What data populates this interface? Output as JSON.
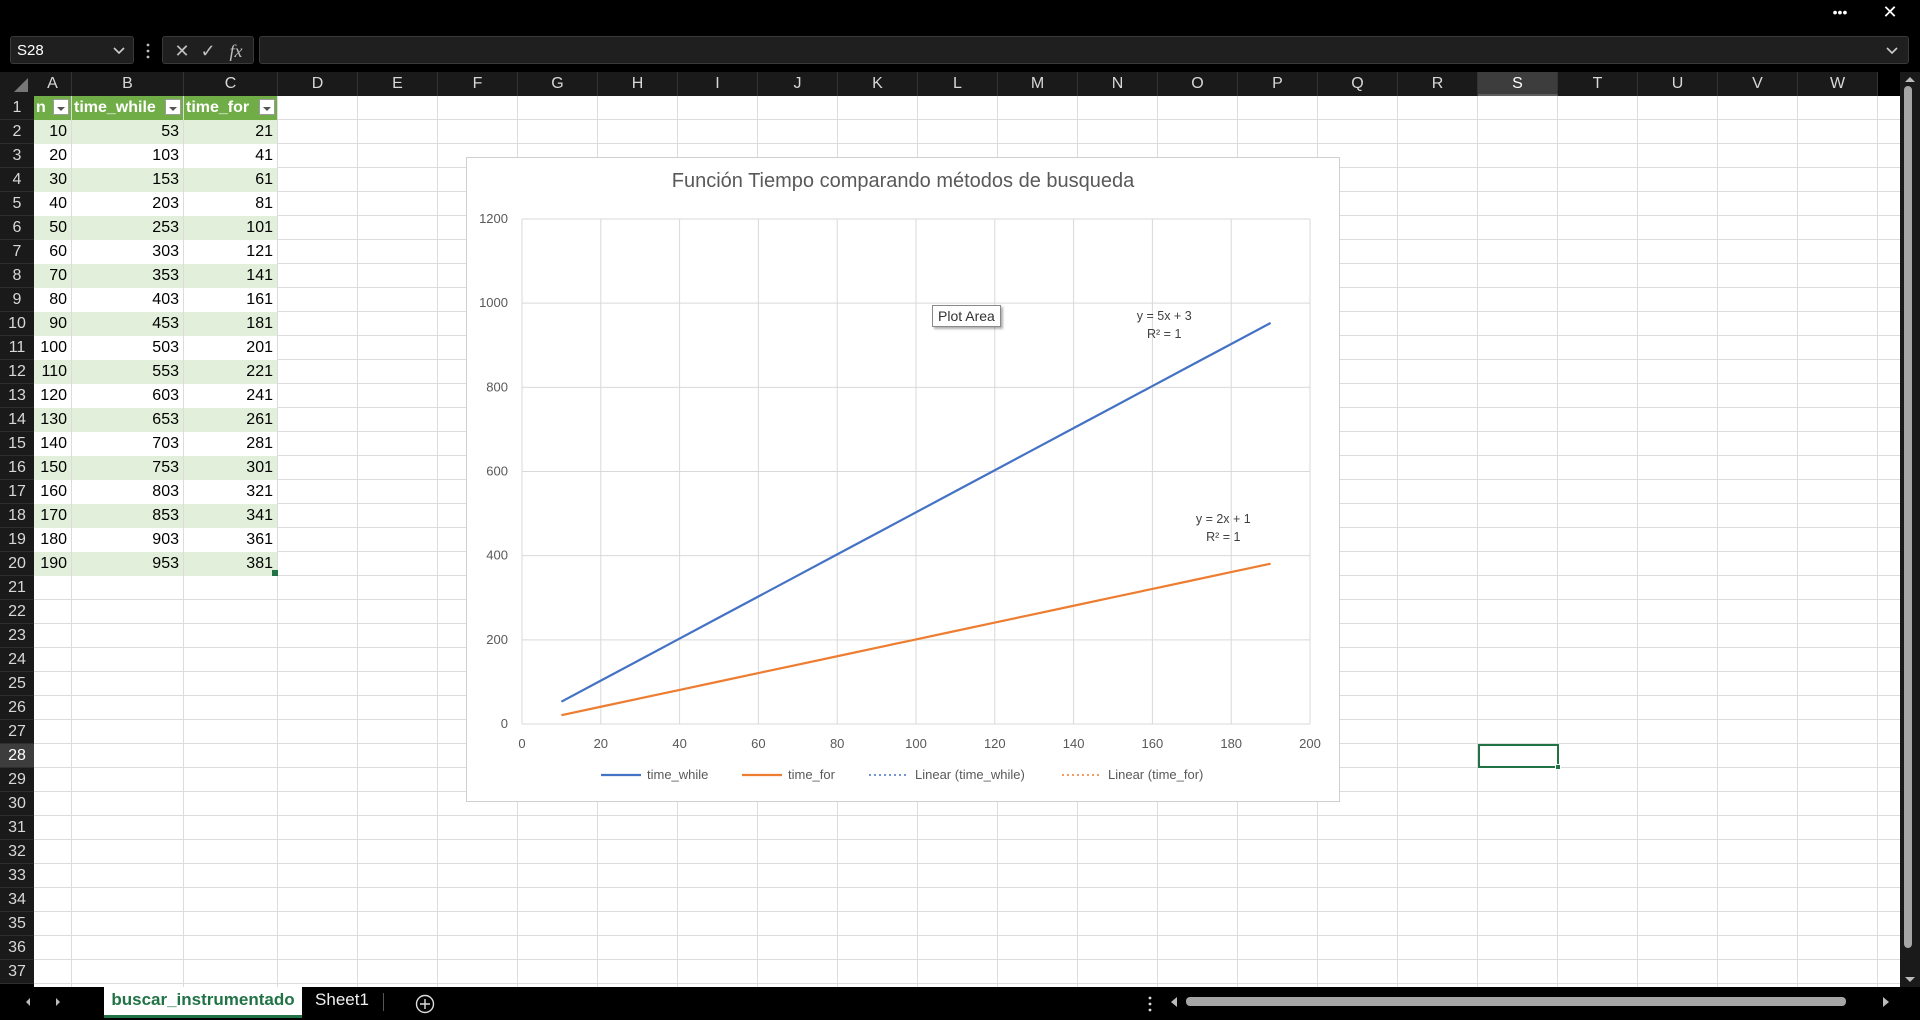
{
  "titlebar": {
    "more_label": "•••",
    "close_label": "✕"
  },
  "formula_bar": {
    "name_box": "S28",
    "fx_label": "fx",
    "cancel_label": "✕",
    "enter_label": "✓",
    "value": ""
  },
  "columns": [
    "A",
    "B",
    "C",
    "D",
    "E",
    "F",
    "G",
    "H",
    "I",
    "J",
    "K",
    "L",
    "M",
    "N",
    "O",
    "P",
    "Q",
    "R",
    "S",
    "T",
    "U",
    "V",
    "W"
  ],
  "selected_column": "S",
  "rows": [
    "1",
    "2",
    "3",
    "4",
    "5",
    "6",
    "7",
    "8",
    "9",
    "10",
    "11",
    "12",
    "13",
    "14",
    "15",
    "16",
    "17",
    "18",
    "19",
    "20",
    "21",
    "22",
    "23",
    "24",
    "25",
    "26",
    "27",
    "28",
    "29",
    "30",
    "31",
    "32",
    "33",
    "34",
    "35",
    "36",
    "37"
  ],
  "selected_row": "28",
  "table": {
    "headers": [
      "n",
      "time_while",
      "time_for"
    ],
    "rows": [
      [
        "10",
        "53",
        "21"
      ],
      [
        "20",
        "103",
        "41"
      ],
      [
        "30",
        "153",
        "61"
      ],
      [
        "40",
        "203",
        "81"
      ],
      [
        "50",
        "253",
        "101"
      ],
      [
        "60",
        "303",
        "121"
      ],
      [
        "70",
        "353",
        "141"
      ],
      [
        "80",
        "403",
        "161"
      ],
      [
        "90",
        "453",
        "181"
      ],
      [
        "100",
        "503",
        "201"
      ],
      [
        "110",
        "553",
        "221"
      ],
      [
        "120",
        "603",
        "241"
      ],
      [
        "130",
        "653",
        "261"
      ],
      [
        "140",
        "703",
        "281"
      ],
      [
        "150",
        "753",
        "301"
      ],
      [
        "160",
        "803",
        "321"
      ],
      [
        "170",
        "853",
        "341"
      ],
      [
        "180",
        "903",
        "361"
      ],
      [
        "190",
        "953",
        "381"
      ]
    ]
  },
  "tooltip": "Plot Area",
  "chart_data": {
    "type": "line",
    "title": "Función Tiempo comparando métodos de busqueda",
    "x": [
      10,
      20,
      30,
      40,
      50,
      60,
      70,
      80,
      90,
      100,
      110,
      120,
      130,
      140,
      150,
      160,
      170,
      180,
      190
    ],
    "xlim": [
      0,
      200
    ],
    "ylim": [
      0,
      1200
    ],
    "x_ticks": [
      "0",
      "20",
      "40",
      "60",
      "80",
      "100",
      "120",
      "140",
      "160",
      "180",
      "200"
    ],
    "y_ticks": [
      "0",
      "200",
      "400",
      "600",
      "800",
      "1000",
      "1200"
    ],
    "grid": true,
    "legend_position": "bottom",
    "series": [
      {
        "name": "time_while",
        "color": "#4472c4",
        "values": [
          53,
          103,
          153,
          203,
          253,
          303,
          353,
          403,
          453,
          503,
          553,
          603,
          653,
          703,
          753,
          803,
          853,
          903,
          953
        ]
      },
      {
        "name": "time_for",
        "color": "#ed7d31",
        "values": [
          21,
          41,
          61,
          81,
          101,
          121,
          141,
          161,
          181,
          201,
          221,
          241,
          261,
          281,
          301,
          321,
          341,
          361,
          381
        ]
      }
    ],
    "legend": [
      "time_while",
      "time_for",
      "Linear (time_while)",
      "Linear (time_for)"
    ],
    "annotations": [
      {
        "line1": "y = 5x + 3",
        "line2": "R² = 1"
      },
      {
        "line1": "y = 2x + 1",
        "line2": "R² = 1"
      }
    ]
  },
  "sheets": {
    "active": "buscar_instrumentado",
    "other": "Sheet1"
  }
}
